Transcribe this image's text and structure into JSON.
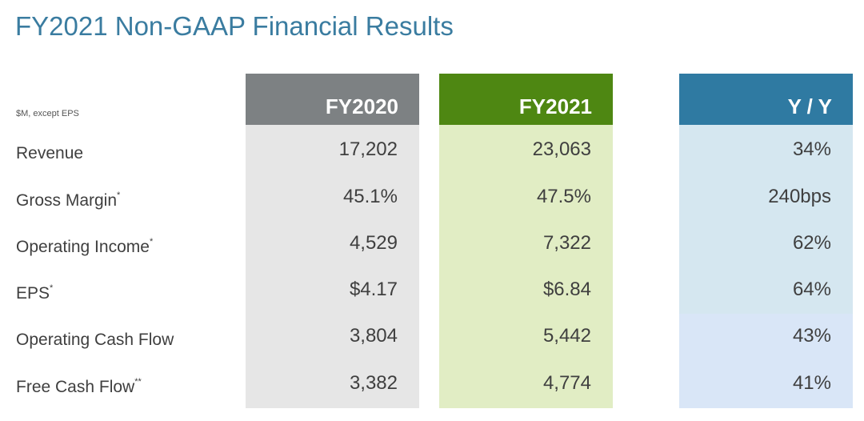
{
  "title": "FY2021 Non-GAAP Financial Results",
  "units_note": "$M, except EPS",
  "columns": [
    "FY2020",
    "FY2021",
    "Y / Y"
  ],
  "rows": [
    {
      "label": "Revenue",
      "mark": "",
      "fy2020": "17,202",
      "fy2021": "23,063",
      "yy": "34%"
    },
    {
      "label": "Gross Margin",
      "mark": "*",
      "fy2020": "45.1%",
      "fy2021": "47.5%",
      "yy": "240bps"
    },
    {
      "label": "Operating Income",
      "mark": "*",
      "fy2020": "4,529",
      "fy2021": "7,322",
      "yy": "62%"
    },
    {
      "label": "EPS",
      "mark": "*",
      "fy2020": "$4.17",
      "fy2021": "$6.84",
      "yy": "64%"
    },
    {
      "label": "Operating Cash Flow",
      "mark": "",
      "fy2020": "3,804",
      "fy2021": "5,442",
      "yy": "43%"
    },
    {
      "label": "Free Cash Flow",
      "mark": "**",
      "fy2020": "3,382",
      "fy2021": "4,774",
      "yy": "41%"
    }
  ],
  "colors": {
    "title": "#3a7ca0",
    "fy2020_header": "#7d8183",
    "fy2021_header": "#4e8712",
    "yy_header": "#2f7aa2"
  }
}
